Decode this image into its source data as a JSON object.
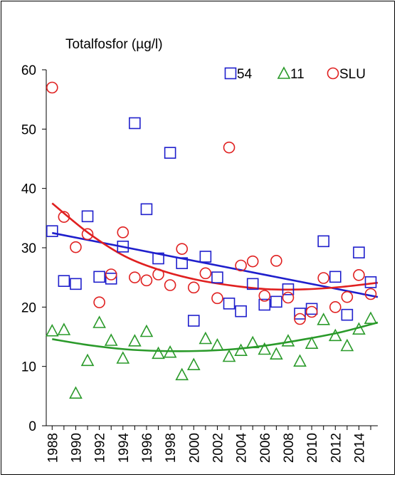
{
  "chart_data": {
    "type": "scatter",
    "title": "Totalfosfor (µg/l)",
    "xlabel": "",
    "ylabel": "",
    "ylim": [
      0,
      60
    ],
    "yticks": [
      0,
      10,
      20,
      30,
      40,
      50,
      60
    ],
    "xlim": [
      1987.5,
      2015.6
    ],
    "xticks": [
      "1988",
      "1990",
      "1992",
      "1994",
      "1996",
      "1998",
      "2000",
      "2002",
      "2004",
      "2006",
      "2008",
      "2010",
      "2012",
      "2014"
    ],
    "grid": false,
    "legend_position": "top-right",
    "series": [
      {
        "name": "54",
        "marker": "square",
        "color": "#1f1fcc",
        "x": [
          1988,
          1989,
          1990,
          1991,
          1992,
          1993,
          1994,
          1995,
          1996,
          1997,
          1998,
          1999,
          2000,
          2001,
          2002,
          2003,
          2004,
          2005,
          2006,
          2007,
          2008,
          2009,
          2010,
          2011,
          2012,
          2013,
          2014,
          2015
        ],
        "y": [
          32.8,
          24.4,
          23.9,
          35.3,
          25.1,
          24.8,
          30.2,
          51.0,
          36.5,
          28.2,
          46.0,
          27.4,
          17.7,
          28.5,
          25.0,
          20.6,
          19.3,
          23.9,
          20.4,
          20.9,
          23.0,
          18.9,
          19.7,
          31.1,
          25.1,
          18.7,
          29.2,
          24.2
        ],
        "trend": [
          32.5,
          21.7
        ]
      },
      {
        "name": "11",
        "marker": "triangle",
        "color": "#2a9a2a",
        "x": [
          1988,
          1989,
          1990,
          1991,
          1992,
          1993,
          1994,
          1995,
          1996,
          1997,
          1998,
          1999,
          2000,
          2001,
          2002,
          2003,
          2004,
          2005,
          2006,
          2007,
          2008,
          2009,
          2010,
          2011,
          2012,
          2013,
          2014,
          2015
        ],
        "y": [
          16.0,
          16.2,
          5.5,
          11.0,
          17.4,
          14.4,
          11.4,
          14.3,
          15.9,
          12.2,
          12.4,
          8.6,
          10.3,
          14.7,
          13.6,
          11.7,
          12.7,
          14.0,
          12.9,
          12.1,
          14.3,
          10.9,
          13.9,
          17.9,
          15.2,
          13.5,
          16.3,
          18.1
        ],
        "trend": [
          14.6,
          13.6,
          12.9,
          12.6,
          12.6,
          12.9,
          13.6,
          14.6,
          15.8,
          17.4
        ]
      },
      {
        "name": "SLU",
        "marker": "circle",
        "color": "#e02020",
        "x": [
          1988,
          1989,
          1990,
          1991,
          1992,
          1993,
          1994,
          1995,
          1996,
          1997,
          1998,
          1999,
          2000,
          2001,
          2002,
          2003,
          2004,
          2005,
          2006,
          2007,
          2008,
          2009,
          2010,
          2011,
          2012,
          2013,
          2014,
          2015
        ],
        "y": [
          57.0,
          35.2,
          30.1,
          32.3,
          20.8,
          25.5,
          32.6,
          25.0,
          24.5,
          25.5,
          23.7,
          29.8,
          23.3,
          25.7,
          21.5,
          46.9,
          27.0,
          27.7,
          21.9,
          27.8,
          21.6,
          18.0,
          19.2,
          24.9,
          20.0,
          21.7,
          25.4,
          22.2
        ],
        "trend": [
          37.5,
          32.5,
          28.6,
          26.2,
          24.6,
          23.6,
          23.0,
          23.0,
          23.4,
          24.1
        ]
      }
    ]
  }
}
